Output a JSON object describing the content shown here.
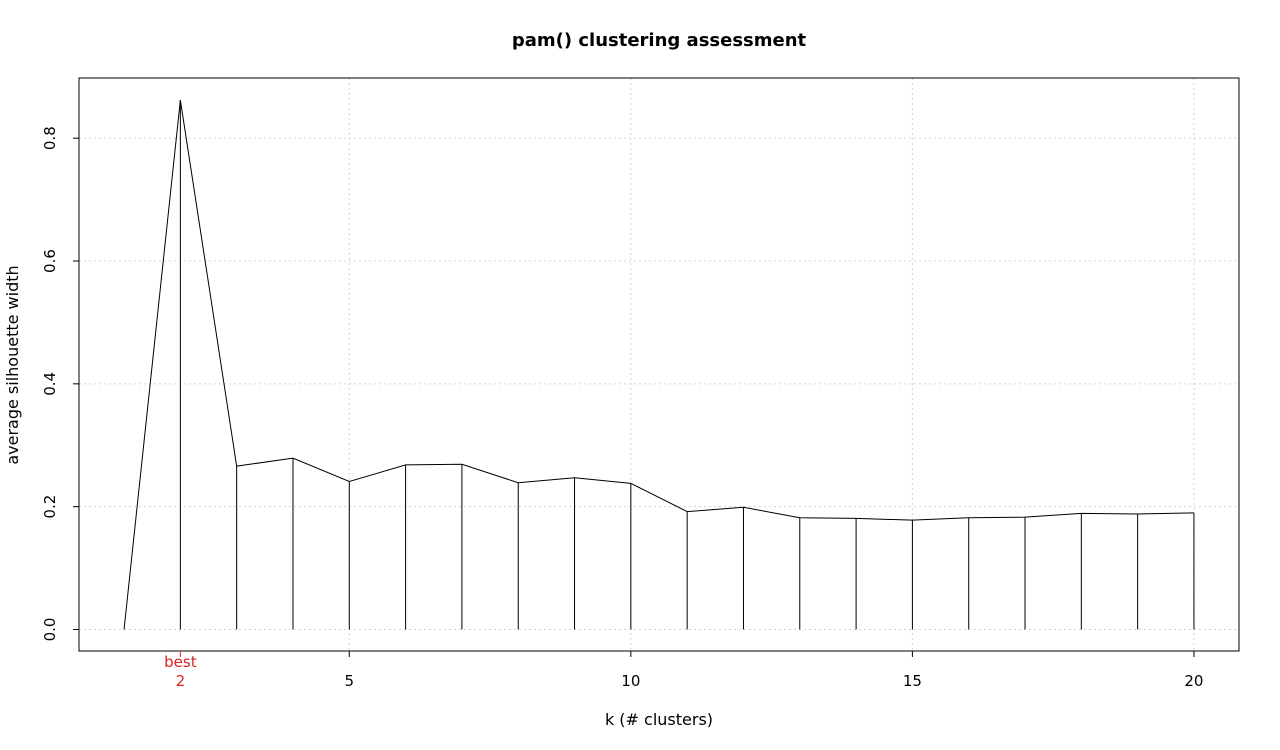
{
  "chart_data": {
    "type": "line",
    "title": "pam() clustering assessment",
    "xlabel": "k  (# clusters)",
    "ylabel": "average silhouette width",
    "x": [
      1,
      2,
      3,
      4,
      5,
      6,
      7,
      8,
      9,
      10,
      11,
      12,
      13,
      14,
      15,
      16,
      17,
      18,
      19,
      20
    ],
    "values": [
      0.0,
      0.862,
      0.266,
      0.279,
      0.241,
      0.268,
      0.269,
      0.239,
      0.247,
      0.238,
      0.192,
      0.199,
      0.182,
      0.181,
      0.178,
      0.182,
      0.183,
      0.189,
      0.188,
      0.19
    ],
    "xlim": [
      0.2,
      20.8
    ],
    "ylim": [
      -0.035,
      0.898
    ],
    "x_ticks": [
      5,
      10,
      15,
      20
    ],
    "y_ticks": [
      0.0,
      0.2,
      0.4,
      0.6,
      0.8
    ],
    "y_tick_labels": [
      "0.0",
      "0.2",
      "0.4",
      "0.6",
      "0.8"
    ],
    "best": {
      "k": 2,
      "label": "best",
      "tick_label": "2",
      "color": "#dd2222"
    },
    "grid": true,
    "grid_color": "#d3d3d3",
    "line_color": "#000000"
  }
}
